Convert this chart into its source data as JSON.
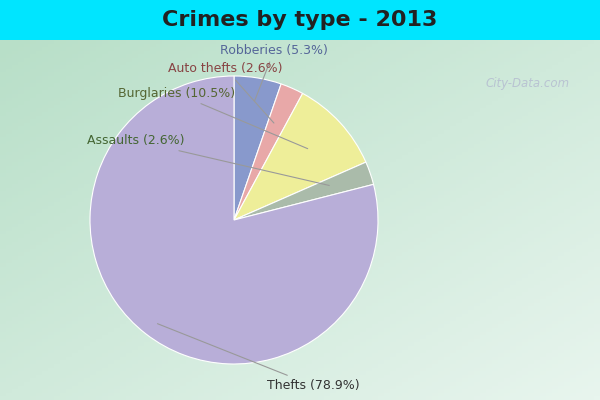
{
  "title": "Crimes by type - 2013",
  "slices": [
    {
      "label": "Thefts",
      "pct": 78.9,
      "color": "#b8aed8"
    },
    {
      "label": "Robberies",
      "pct": 5.3,
      "color": "#8899cc"
    },
    {
      "label": "Auto thefts",
      "pct": 2.6,
      "color": "#e8a8a8"
    },
    {
      "label": "Burglaries",
      "pct": 10.5,
      "color": "#eeee99"
    },
    {
      "label": "Assaults",
      "pct": 2.6,
      "color": "#aabbaa"
    }
  ],
  "background_top": "#00e5ff",
  "title_fontsize": 16,
  "label_fontsize": 9,
  "watermark": "City-Data.com",
  "title_color": "#222222"
}
